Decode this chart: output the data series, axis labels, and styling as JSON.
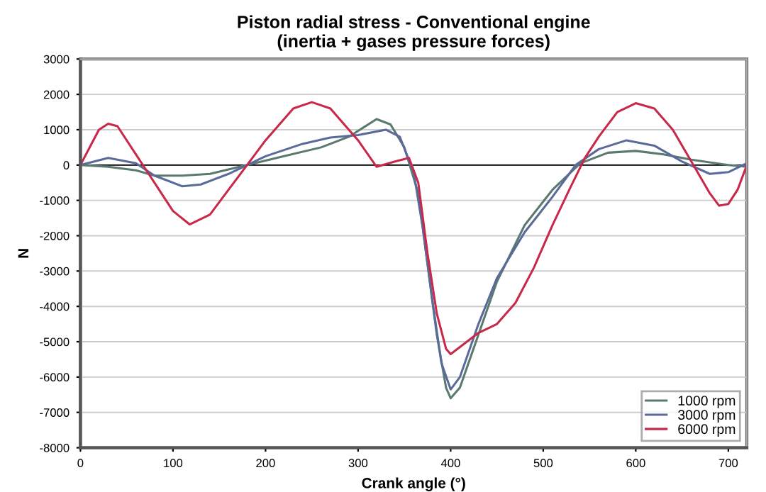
{
  "chart_data": {
    "type": "line",
    "title": "Piston radial stress - Conventional engine\n(inertia + gases pressure forces)",
    "xlabel": "Crank angle (°)",
    "ylabel": "N",
    "xlim": [
      0,
      720
    ],
    "xticks": [
      0,
      100,
      200,
      300,
      400,
      500,
      600,
      700
    ],
    "ylim": [
      -8000,
      3000
    ],
    "yticks": [
      -8000,
      -7000,
      -6000,
      -5000,
      -4000,
      -3000,
      -2000,
      -1000,
      0,
      1000,
      2000,
      3000
    ],
    "grid": "y",
    "legend": "bottom right",
    "marker": "none",
    "line_style": "solid",
    "series": [
      {
        "name": "1000 rpm",
        "color": "#5a7a70",
        "x": [
          0,
          30,
          60,
          80,
          110,
          140,
          180,
          220,
          260,
          290,
          320,
          335,
          350,
          365,
          375,
          385,
          395,
          400,
          410,
          430,
          450,
          480,
          510,
          540,
          570,
          600,
          630,
          660,
          700,
          720
        ],
        "values": [
          0,
          -50,
          -150,
          -300,
          -300,
          -250,
          0,
          250,
          500,
          800,
          1300,
          1150,
          500,
          -800,
          -2800,
          -4800,
          -6300,
          -6600,
          -6300,
          -4800,
          -3300,
          -1700,
          -700,
          50,
          350,
          400,
          300,
          150,
          0,
          -50
        ]
      },
      {
        "name": "3000 rpm",
        "color": "#5a6a9a",
        "x": [
          0,
          30,
          60,
          80,
          110,
          130,
          160,
          180,
          200,
          240,
          270,
          300,
          330,
          345,
          360,
          370,
          380,
          390,
          400,
          410,
          430,
          450,
          480,
          510,
          535,
          560,
          590,
          620,
          650,
          680,
          700,
          720
        ],
        "values": [
          0,
          200,
          50,
          -300,
          -600,
          -550,
          -250,
          0,
          250,
          600,
          780,
          850,
          1000,
          800,
          -200,
          -1800,
          -3800,
          -5600,
          -6350,
          -6000,
          -4500,
          -3200,
          -1900,
          -900,
          0,
          450,
          700,
          550,
          100,
          -250,
          -200,
          50
        ]
      },
      {
        "name": "6000 rpm",
        "color": "#c8284a",
        "x": [
          0,
          20,
          30,
          40,
          60,
          75,
          100,
          118,
          140,
          160,
          180,
          200,
          230,
          250,
          270,
          300,
          320,
          340,
          355,
          365,
          375,
          385,
          395,
          400,
          415,
          430,
          450,
          470,
          490,
          510,
          530,
          545,
          560,
          580,
          600,
          620,
          640,
          660,
          680,
          690,
          700,
          710,
          720
        ],
        "values": [
          0,
          1000,
          1170,
          1100,
          300,
          -300,
          -1300,
          -1680,
          -1400,
          -700,
          0,
          700,
          1600,
          1780,
          1600,
          700,
          -50,
          100,
          200,
          -500,
          -2500,
          -4200,
          -5200,
          -5350,
          -5050,
          -4750,
          -4500,
          -3900,
          -2900,
          -1700,
          -600,
          200,
          800,
          1500,
          1750,
          1600,
          1000,
          100,
          -800,
          -1150,
          -1100,
          -700,
          0
        ]
      }
    ]
  }
}
